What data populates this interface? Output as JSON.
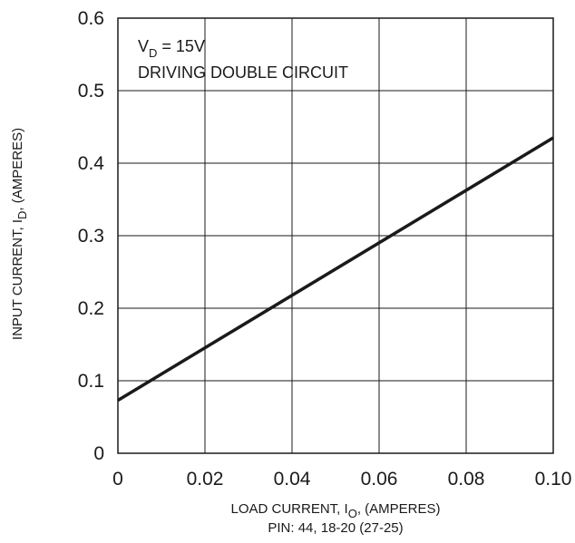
{
  "chart_data": {
    "type": "line",
    "xlabel": {
      "main": "LOAD CURRENT, I",
      "sub": "O",
      "rest": ", (AMPERES)"
    },
    "xlabel_line2": "PIN: 44, 18-20 (27-25)",
    "ylabel": {
      "main": "INPUT CURRENT, I",
      "sub": "D",
      "rest": ", (AMPERES)"
    },
    "xlim": [
      0,
      0.1
    ],
    "ylim": [
      0,
      0.6
    ],
    "xticks": [
      "0",
      "0.02",
      "0.04",
      "0.06",
      "0.08",
      "0.10"
    ],
    "yticks": [
      "0",
      "0.1",
      "0.2",
      "0.3",
      "0.4",
      "0.5",
      "0.6"
    ],
    "x_tick_values": [
      0,
      0.02,
      0.04,
      0.06,
      0.08,
      0.1
    ],
    "y_tick_values": [
      0,
      0.1,
      0.2,
      0.3,
      0.4,
      0.5,
      0.6
    ],
    "grid": true,
    "annotation": {
      "line1_main": "V",
      "line1_sub": "D",
      "line1_rest": " = 15V",
      "line2": "DRIVING DOUBLE CIRCUIT"
    },
    "series": [
      {
        "x": [
          0,
          0.1
        ],
        "y": [
          0.073,
          0.435
        ]
      }
    ],
    "line_color": "#1a1a1a"
  }
}
